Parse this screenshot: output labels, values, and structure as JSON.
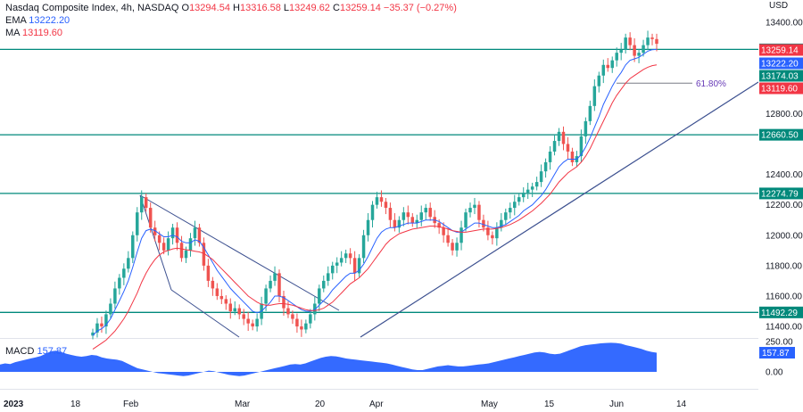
{
  "header": {
    "symbol": "Nasdaq Composite Index, 4h, NASDAQ",
    "o_label": "O",
    "o": "13294.54",
    "h_label": "H",
    "h": "13316.58",
    "l_label": "L",
    "l": "13249.62",
    "c_label": "C",
    "c": "13259.14",
    "change": "−35.37 (−0.27%)",
    "ema_label": "EMA",
    "ema_value": "13222.20",
    "ma_label": "MA",
    "ma_value": "13119.60"
  },
  "macd": {
    "label": "MACD",
    "value": "157.87"
  },
  "colors": {
    "up": "#26a69a",
    "down": "#ef5350",
    "ema": "#2962ff",
    "ma": "#f23645",
    "level": "#00897b",
    "trend": "#3b4f8f",
    "macd": "#2962ff"
  },
  "chart_data": {
    "type": "candlestick",
    "currency": "USD",
    "y_ticks": [
      "13400.00",
      "12800.00",
      "12400.00",
      "12200.00",
      "12000.00",
      "11800.00",
      "11600.00",
      "11400.00"
    ],
    "x_ticks": [
      "2023",
      "18",
      "Feb",
      "Mar",
      "20",
      "Apr",
      "May",
      "15",
      "Jun",
      "14"
    ],
    "ylim": [
      11330,
      13500
    ],
    "levels": [
      {
        "label": "13222.20",
        "value": 13222.2
      },
      {
        "label": "12660.50",
        "value": 12660.5
      },
      {
        "label": "12274.79",
        "value": 12274.79
      },
      {
        "label": "11492.29",
        "value": 11492.29
      }
    ],
    "price_tags": [
      {
        "label": "13259.14",
        "value": 13259.14,
        "color": "#f23645"
      },
      {
        "label": "13222.20",
        "value": 13222.2,
        "color": "#2962ff"
      },
      {
        "label": "13174.03",
        "value": 13174.03,
        "color": "#00897b"
      },
      {
        "label": "13119.60",
        "value": 13119.6,
        "color": "#f23645"
      }
    ],
    "fib_label": "61.80%",
    "fib_value": 13000,
    "macd_ticks": [
      "250.00",
      "0.00"
    ],
    "macd_tag": "157.87",
    "close": [
      11360,
      11420,
      11400,
      11480,
      11550,
      11650,
      11720,
      11780,
      11850,
      12000,
      12150,
      12250,
      12180,
      12050,
      12000,
      11950,
      11900,
      11980,
      12050,
      11950,
      11850,
      11900,
      11980,
      12050,
      11950,
      11800,
      11700,
      11650,
      11600,
      11580,
      11550,
      11500,
      11520,
      11480,
      11450,
      11420,
      11400,
      11450,
      11550,
      11650,
      11700,
      11750,
      11600,
      11520,
      11480,
      11450,
      11400,
      11380,
      11420,
      11480,
      11550,
      11650,
      11700,
      11750,
      11800,
      11820,
      11850,
      11880,
      11850,
      11750,
      11850,
      12000,
      12100,
      12200,
      12250,
      12220,
      12180,
      12100,
      12050,
      12100,
      12150,
      12120,
      12080,
      12100,
      12150,
      12180,
      12120,
      12080,
      12050,
      12000,
      11950,
      11900,
      11950,
      12050,
      12150,
      12180,
      12200,
      12100,
      12050,
      12000,
      11980,
      12050,
      12100,
      12150,
      12180,
      12220,
      12250,
      12280,
      12300,
      12320,
      12350,
      12420,
      12480,
      12550,
      12620,
      12680,
      12600,
      12550,
      12480,
      12520,
      12650,
      12750,
      12850,
      12980,
      13050,
      13120,
      13100,
      13150,
      13200,
      13220,
      13300,
      13250,
      13180,
      13200,
      13250,
      13300,
      13290,
      13259
    ],
    "ema": [
      11340,
      11370,
      11385,
      11410,
      11450,
      11510,
      11570,
      11630,
      11700,
      11790,
      11890,
      11980,
      12030,
      12040,
      12030,
      12010,
      11990,
      11990,
      12000,
      11990,
      11960,
      11950,
      11950,
      11970,
      11960,
      11920,
      11870,
      11820,
      11770,
      11730,
      11690,
      11650,
      11620,
      11590,
      11560,
      11530,
      11500,
      11490,
      11500,
      11530,
      11560,
      11600,
      11600,
      11590,
      11570,
      11550,
      11530,
      11510,
      11500,
      11500,
      11510,
      11540,
      11570,
      11600,
      11640,
      11670,
      11700,
      11730,
      11750,
      11750,
      11770,
      11810,
      11860,
      11920,
      11980,
      12020,
      12040,
      12050,
      12050,
      12060,
      12070,
      12080,
      12080,
      12080,
      12090,
      12100,
      12100,
      12100,
      12090,
      12070,
      12050,
      12030,
      12020,
      12020,
      12040,
      12060,
      12080,
      12080,
      12070,
      12060,
      12050,
      12050,
      12060,
      12070,
      12090,
      12110,
      12130,
      12160,
      12180,
      12200,
      12230,
      12260,
      12300,
      12350,
      12400,
      12450,
      12480,
      12500,
      12500,
      12500,
      12530,
      12580,
      12640,
      12710,
      12780,
      12860,
      12920,
      12980,
      13030,
      13070,
      13120,
      13150,
      13160,
      13170,
      13190,
      13210,
      13220,
      13222
    ],
    "ma": [
      11250,
      11270,
      11290,
      11310,
      11340,
      11370,
      11410,
      11450,
      11500,
      11560,
      11620,
      11690,
      11750,
      11800,
      11840,
      11870,
      11890,
      11900,
      11910,
      11915,
      11910,
      11905,
      11900,
      11895,
      11890,
      11880,
      11860,
      11840,
      11810,
      11780,
      11750,
      11720,
      11690,
      11660,
      11630,
      11600,
      11580,
      11560,
      11545,
      11540,
      11540,
      11545,
      11550,
      11550,
      11545,
      11540,
      11530,
      11520,
      11510,
      11505,
      11505,
      11510,
      11520,
      11540,
      11560,
      11590,
      11620,
      11650,
      11680,
      11700,
      11720,
      11750,
      11780,
      11820,
      11860,
      11900,
      11940,
      11970,
      11990,
      12010,
      12020,
      12030,
      12040,
      12045,
      12050,
      12055,
      12060,
      12060,
      12055,
      12050,
      12040,
      12030,
      12025,
      12020,
      12020,
      12025,
      12030,
      12035,
      12040,
      12040,
      12040,
      12045,
      12050,
      12060,
      12070,
      12085,
      12100,
      12120,
      12140,
      12160,
      12185,
      12210,
      12240,
      12270,
      12310,
      12350,
      12380,
      12410,
      12430,
      12450,
      12480,
      12520,
      12570,
      12630,
      12690,
      12750,
      12810,
      12870,
      12920,
      12960,
      13000,
      13030,
      13050,
      13070,
      13090,
      13105,
      13115,
      13120
    ],
    "macd_values": [
      60,
      70,
      65,
      80,
      90,
      100,
      110,
      120,
      130,
      150,
      170,
      175,
      165,
      150,
      140,
      130,
      125,
      130,
      140,
      135,
      120,
      110,
      105,
      100,
      90,
      70,
      50,
      30,
      20,
      10,
      0,
      -10,
      -15,
      -20,
      -25,
      -30,
      -35,
      -30,
      -20,
      -10,
      0,
      10,
      5,
      -5,
      -15,
      -25,
      -30,
      -35,
      -30,
      -20,
      -10,
      0,
      10,
      20,
      30,
      40,
      50,
      60,
      65,
      60,
      70,
      85,
      100,
      115,
      125,
      130,
      128,
      120,
      110,
      105,
      100,
      95,
      90,
      85,
      80,
      75,
      70,
      60,
      50,
      40,
      30,
      20,
      15,
      15,
      25,
      35,
      45,
      50,
      55,
      50,
      45,
      45,
      50,
      55,
      60,
      65,
      70,
      80,
      90,
      100,
      110,
      120,
      130,
      140,
      150,
      160,
      165,
      160,
      150,
      145,
      150,
      165,
      180,
      195,
      210,
      220,
      225,
      230,
      235,
      238,
      240,
      238,
      232,
      220,
      210,
      200,
      190,
      175,
      165,
      158
    ]
  }
}
